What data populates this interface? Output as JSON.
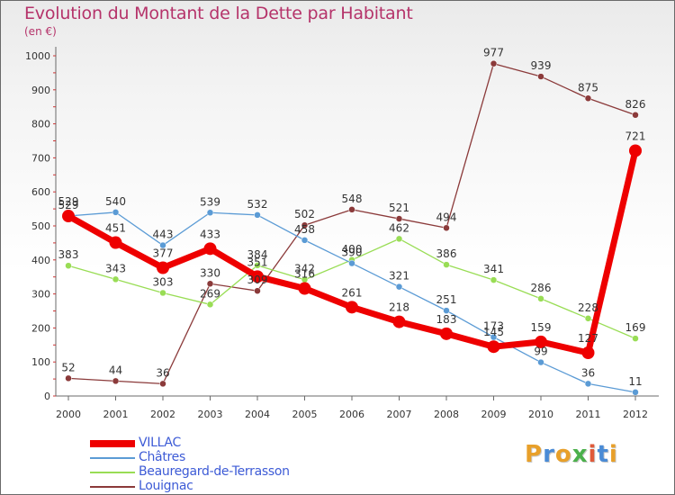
{
  "header": {
    "title": "Evolution du Montant de la Dette par Habitant",
    "subtitle": "(en €)"
  },
  "logo": {
    "text": "Proxiti",
    "colors": [
      "#e8a02a",
      "#4a8bd6",
      "#e8a02a",
      "#4bb04b",
      "#e05a3a",
      "#4a8bd6",
      "#e8a02a"
    ]
  },
  "chart_data": {
    "type": "line",
    "title": "Evolution du Montant de la Dette par Habitant",
    "ylabel": "(en €)",
    "xlabel": "",
    "x": [
      "2000",
      "2001",
      "2002",
      "2003",
      "2004",
      "2005",
      "2006",
      "2007",
      "2008",
      "2009",
      "2010",
      "2011",
      "2012"
    ],
    "ylim": [
      0,
      1000
    ],
    "yticks": [
      0,
      100,
      200,
      300,
      400,
      500,
      600,
      700,
      800,
      900,
      1000
    ],
    "grid": false,
    "legend_position": "bottom-left",
    "series": [
      {
        "name": "VILLAC",
        "color": "#ee0000",
        "values": [
          529,
          451,
          377,
          433,
          351,
          316,
          261,
          218,
          183,
          145,
          159,
          127,
          721
        ],
        "labels": [
          "529",
          "451",
          "377",
          "433",
          "351",
          "316",
          "261",
          "218",
          "183",
          "145",
          "159",
          "127",
          "721"
        ]
      },
      {
        "name": "Châtres",
        "color": "#5b9bd5",
        "values": [
          529,
          540,
          443,
          539,
          532,
          458,
          390,
          321,
          251,
          173,
          99,
          36,
          11
        ],
        "labels": [
          "529",
          "540",
          "443",
          "539",
          "532",
          "458",
          "390",
          "321",
          "251",
          "173",
          "99",
          "36",
          "11"
        ]
      },
      {
        "name": "Beauregard-de-Terrasson",
        "color": "#99dd55",
        "values": [
          383,
          343,
          303,
          269,
          384,
          342,
          400,
          462,
          386,
          341,
          286,
          228,
          169
        ],
        "labels": [
          "383",
          "343",
          "303",
          "269",
          "384",
          "342",
          "400",
          "462",
          "386",
          "341",
          "286",
          "228",
          "169"
        ]
      },
      {
        "name": "Louignac",
        "color": "#8b3a3a",
        "values": [
          52,
          44,
          36,
          330,
          309,
          502,
          548,
          521,
          494,
          977,
          939,
          875,
          826
        ],
        "labels": [
          "52",
          "44",
          "36",
          "330",
          "309",
          "502",
          "548",
          "521",
          "494",
          "977",
          "939",
          "875",
          "826"
        ]
      }
    ]
  }
}
